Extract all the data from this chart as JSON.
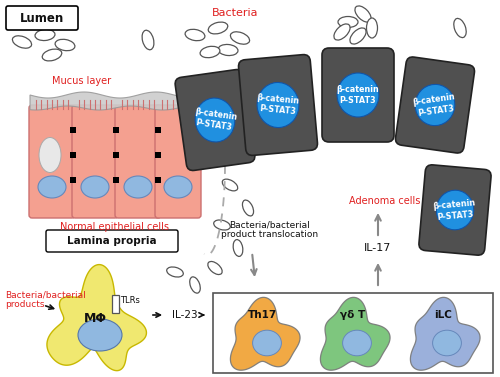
{
  "bg_color": "#ffffff",
  "lumen_label": "Lumen",
  "bacteria_label": "Bacteria",
  "mucus_label": "Mucus layer",
  "normal_cells_label": "Normal epithelial cells",
  "lamina_label": "Lamina propria",
  "bacteria_products_label": "Bacteria/bacterial\nproducts",
  "tlrs_label": "TLRs",
  "mphi_label": "MΦ",
  "il23_label": "IL-23",
  "translocation_label": "Bacteria/bacterial\nproduct translocation",
  "il17_label": "IL-17",
  "adenoma_label": "Adenoma cells",
  "beta_catenin_label": "β-catenin\nP-STAT3",
  "th17_label": "Th17",
  "gdt_label": "γδ T",
  "ilc_label": "iLC",
  "cell_color": "#f4a090",
  "nucleus_color": "#90b8e0",
  "adenoma_color": "#505050",
  "adenoma_nucleus_color": "#2090e0",
  "macrophage_color": "#f0e870",
  "mucus_color": "#cccccc",
  "th17_color": "#f0a030",
  "gdt_color": "#70c070",
  "ilc_color": "#90a8d8",
  "red_text": "#e02020",
  "dark_text": "#111111",
  "gray_text": "#555555",
  "arrow_color": "#888888"
}
